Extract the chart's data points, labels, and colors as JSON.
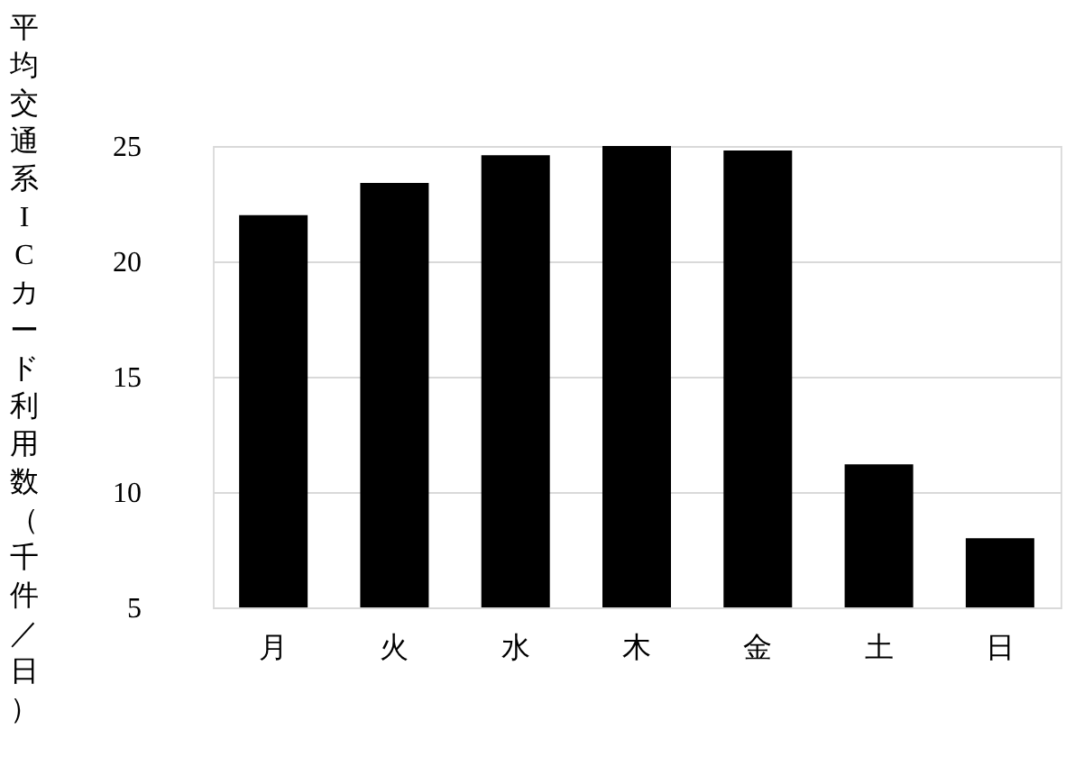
{
  "chart_data": {
    "type": "bar",
    "ylabel": "平均交通系ICカード利用数（千件／日）",
    "categories": [
      "月",
      "火",
      "水",
      "木",
      "金",
      "土",
      "日"
    ],
    "values": [
      22.0,
      23.4,
      24.6,
      25.0,
      24.8,
      11.2,
      8.0
    ],
    "color": "#000000",
    "ylim": [
      5,
      25
    ],
    "yticks": [
      5,
      10,
      15,
      20,
      25
    ],
    "grid": "y"
  }
}
